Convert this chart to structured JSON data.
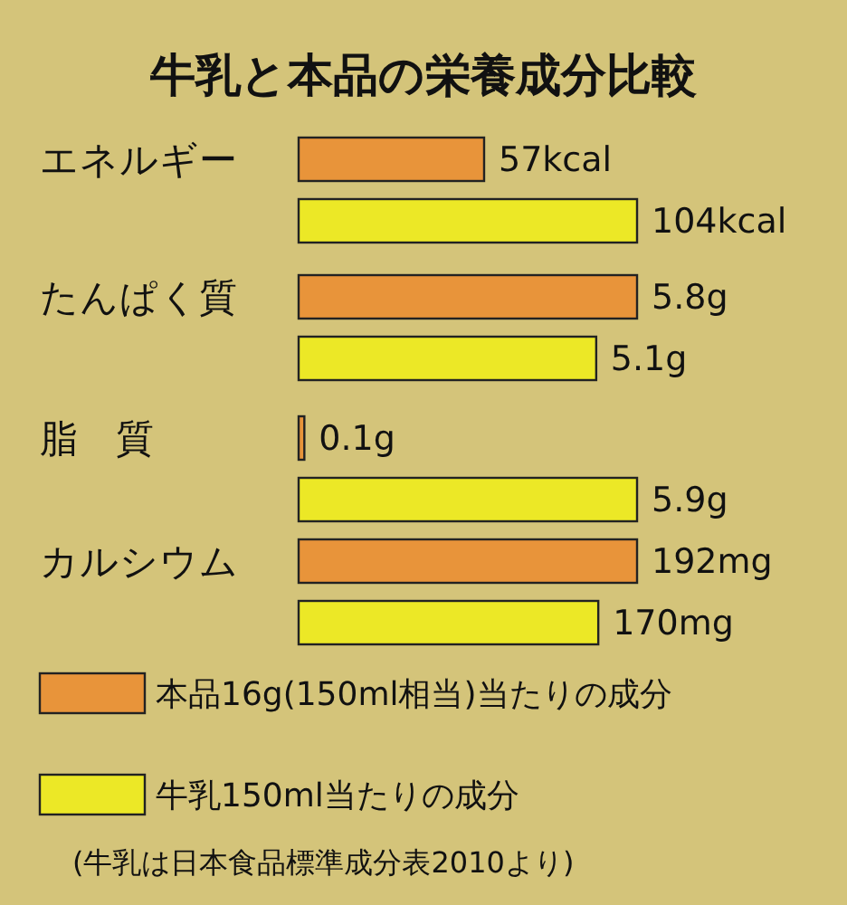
{
  "chart_data": [
    {
      "type": "bar",
      "orientation": "horizontal",
      "title": "牛乳と本品の栄養成分比較",
      "categories": [
        "エネルギー"
      ],
      "xlim": [
        0,
        104
      ],
      "tick_labels": false,
      "legend": false,
      "series": [
        {
          "color": "#e8943a",
          "values": [
            57
          ],
          "value_labels": [
            "57kcal"
          ]
        },
        {
          "color": "#ece826",
          "values": [
            104
          ],
          "value_labels": [
            "104kcal"
          ]
        }
      ]
    },
    {
      "type": "bar",
      "orientation": "horizontal",
      "categories": [
        "たんぱく質"
      ],
      "xlim": [
        0,
        5.8
      ],
      "tick_labels": false,
      "legend": false,
      "series": [
        {
          "color": "#e8943a",
          "values": [
            5.8
          ],
          "value_labels": [
            "5.8g"
          ]
        },
        {
          "color": "#ece826",
          "values": [
            5.1
          ],
          "value_labels": [
            "5.1g"
          ]
        }
      ]
    },
    {
      "type": "bar",
      "orientation": "horizontal",
      "categories": [
        "脂　質"
      ],
      "xlim": [
        0,
        5.9
      ],
      "tick_labels": false,
      "legend": false,
      "series": [
        {
          "color": "#e8943a",
          "values": [
            0.1
          ],
          "value_labels": [
            "0.1g"
          ]
        },
        {
          "color": "#ece826",
          "values": [
            5.9
          ],
          "value_labels": [
            "5.9g"
          ]
        }
      ]
    },
    {
      "type": "bar",
      "orientation": "horizontal",
      "categories": [
        "カルシウム"
      ],
      "xlim": [
        0,
        192
      ],
      "tick_labels": false,
      "legend": "bottom",
      "annotations": [
        "(牛乳は日本食品標準成分表2010より)"
      ],
      "series": [
        {
          "name": "本品16g(150ml相当)当たりの成分",
          "color": "#e8943a",
          "values": [
            192
          ],
          "value_labels": [
            "192mg"
          ]
        },
        {
          "name": "牛乳150ml当たりの成分",
          "color": "#ece826",
          "values": [
            170
          ],
          "value_labels": [
            "170mg"
          ]
        }
      ]
    }
  ]
}
